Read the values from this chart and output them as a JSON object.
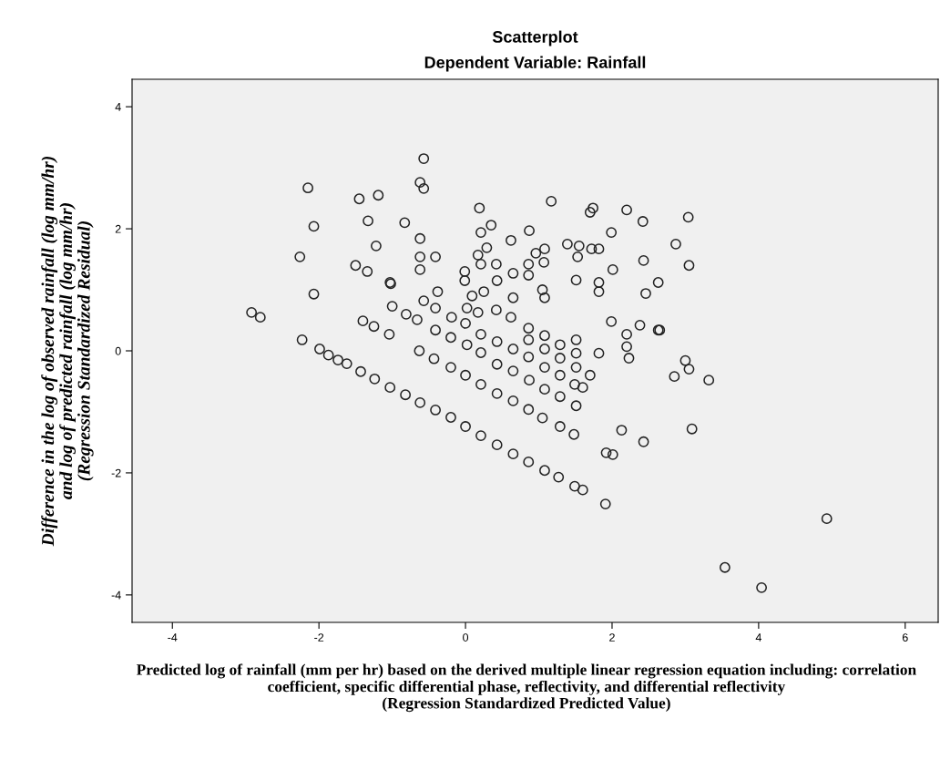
{
  "chart_data": {
    "type": "scatter",
    "title": "Scatterplot",
    "subtitle": "Dependent Variable: Rainfall",
    "xlabel": "Predicted log of rainfall (mm per hr) based on the derived multiple linear regression equation including: correlation coefficient, specific differential phase, reflectivity, and differential reflectivity\n(Regression Standardized Predicted Value)",
    "ylabel": "Difference in the log of observed rainfall (log mm/hr)\nand log of predicted rainfall (log mm/hr)\n(Regression Standardized Residual)",
    "xlim": [
      -4.55,
      6.45
    ],
    "ylim": [
      -4.45,
      4.45
    ],
    "xticks": [
      -4,
      -2,
      0,
      2,
      4,
      6
    ],
    "yticks": [
      -4,
      -2,
      0,
      2,
      4
    ],
    "grid": false,
    "marker": "circle",
    "series": [
      {
        "color": "#222222",
        "x": [
          -2.92,
          -2.8,
          -2.15,
          -2.07,
          -2.26,
          -2.07,
          -2.23,
          -1.45,
          -1.19,
          -1.33,
          -1.22,
          -1.5,
          -1.34,
          -1.02,
          -1.0,
          -1.4,
          -1.25,
          -1.04,
          -1.99,
          -1.87,
          -1.74,
          -1.62,
          -1.43,
          -1.24,
          -1.03,
          -0.82,
          -0.62,
          -0.41,
          -0.2,
          0.0,
          0.21,
          0.43,
          0.65,
          0.86,
          1.08,
          1.27,
          1.49,
          1.6,
          1.91,
          -0.63,
          -0.43,
          -0.2,
          0.0,
          0.21,
          0.43,
          0.65,
          0.86,
          1.05,
          1.29,
          1.48,
          1.92,
          2.01,
          2.13,
          2.43,
          -0.38,
          -0.41,
          -0.57,
          -0.81,
          -0.66,
          -0.41,
          -0.19,
          0.0,
          -0.2,
          0.02,
          0.21,
          0.21,
          0.43,
          0.65,
          0.62,
          0.86,
          0.86,
          0.86,
          1.08,
          1.08,
          1.29,
          1.51,
          1.51,
          1.82,
          2.2,
          2.2,
          2.23,
          1.99,
          2.38,
          2.63,
          0.43,
          0.65,
          0.87,
          1.08,
          1.29,
          1.51,
          1.49,
          1.6,
          1.7,
          1.51,
          1.08,
          1.29,
          1.29,
          -0.57,
          -0.62,
          -0.57,
          -0.83,
          0.19,
          0.21,
          0.35,
          0.87,
          0.62,
          0.29,
          0.17,
          0.21,
          0.42,
          0.43,
          0.65,
          0.86,
          0.86,
          0.96,
          1.08,
          1.07,
          1.17,
          1.39,
          1.55,
          1.53,
          1.74,
          1.7,
          1.72,
          1.82,
          2.2,
          2.42,
          1.99,
          2.43,
          2.01,
          1.51,
          1.82,
          1.82,
          2.46,
          2.63,
          1.05,
          1.08,
          0.65,
          -0.01,
          -0.01,
          0.09,
          0.02,
          0.17,
          0.25,
          0.42,
          -0.62,
          -0.62,
          -0.62,
          -0.41,
          -1.03,
          3.0,
          3.05,
          2.85,
          3.32,
          3.09,
          4.93,
          3.54,
          4.04,
          3.04,
          2.87,
          3.05,
          2.65
        ],
        "values": [
          0.63,
          0.55,
          2.67,
          2.04,
          1.54,
          0.93,
          0.18,
          2.49,
          2.55,
          2.13,
          1.72,
          1.4,
          1.3,
          1.1,
          0.73,
          0.49,
          0.4,
          0.27,
          0.03,
          -0.07,
          -0.15,
          -0.21,
          -0.34,
          -0.46,
          -0.6,
          -0.72,
          -0.85,
          -0.97,
          -1.09,
          -1.24,
          -1.39,
          -1.54,
          -1.69,
          -1.82,
          -1.96,
          -2.07,
          -2.22,
          -2.28,
          -2.51,
          0.0,
          -0.13,
          -0.27,
          -0.4,
          -0.55,
          -0.7,
          -0.82,
          -0.96,
          -1.1,
          -1.24,
          -1.37,
          -1.67,
          -1.7,
          -1.3,
          -1.49,
          0.97,
          0.7,
          0.82,
          0.6,
          0.51,
          0.34,
          0.55,
          0.45,
          0.22,
          0.1,
          0.27,
          -0.03,
          0.15,
          0.03,
          0.55,
          0.37,
          0.18,
          -0.1,
          0.25,
          0.03,
          0.1,
          -0.04,
          0.18,
          -0.04,
          0.27,
          0.07,
          -0.12,
          0.48,
          0.42,
          0.34,
          -0.22,
          -0.33,
          -0.48,
          -0.63,
          -0.75,
          -0.9,
          -0.55,
          -0.6,
          -0.4,
          -0.27,
          -0.27,
          -0.4,
          -0.12,
          3.15,
          2.76,
          2.66,
          2.1,
          2.34,
          1.94,
          2.06,
          1.97,
          1.81,
          1.69,
          1.57,
          1.42,
          1.42,
          1.15,
          1.27,
          1.42,
          1.24,
          1.6,
          1.67,
          1.45,
          2.45,
          1.75,
          1.72,
          1.54,
          2.34,
          2.27,
          1.67,
          1.67,
          2.31,
          2.12,
          1.94,
          1.48,
          1.33,
          1.16,
          1.12,
          0.97,
          0.94,
          1.12,
          1.0,
          0.87,
          0.87,
          1.3,
          1.15,
          0.9,
          0.7,
          0.63,
          0.97,
          0.67,
          1.84,
          1.54,
          1.33,
          1.54,
          1.12,
          -0.16,
          -0.3,
          -0.42,
          -0.48,
          -1.28,
          -2.75,
          -3.55,
          -3.88,
          2.19,
          1.75,
          1.4,
          0.34
        ]
      }
    ]
  }
}
